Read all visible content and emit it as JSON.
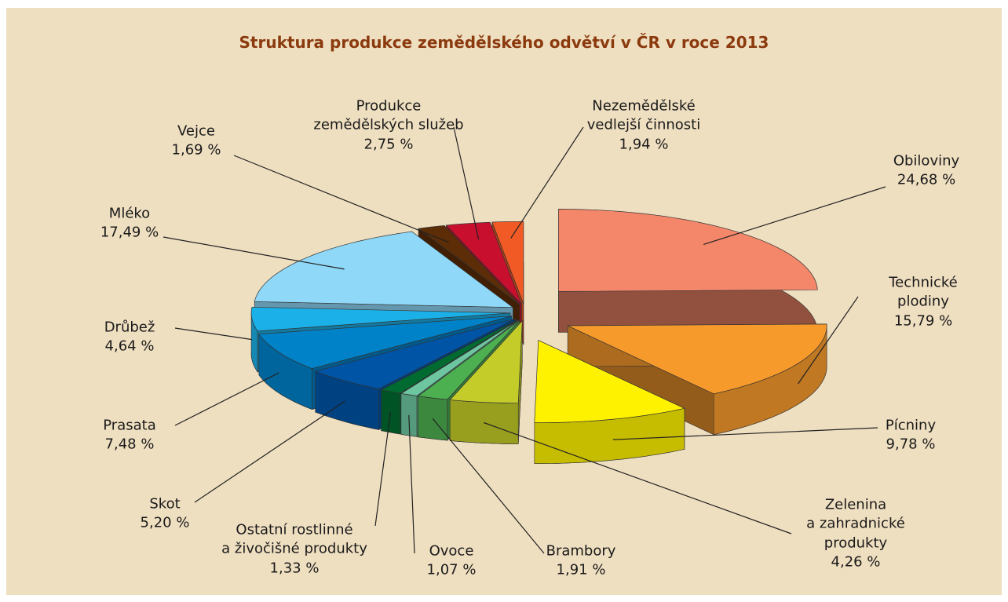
{
  "chart_data": {
    "type": "pie",
    "title": "Struktura produkce zemědělského odvětví v ČR v roce 2013",
    "categories": [
      "Obiloviny",
      "Technické plodiny",
      "Pícniny",
      "Zelenina\na zahradnické produkty",
      "Brambory",
      "Ovoce",
      "Ostatní rostlinné\na živočišné produkty",
      "Skot",
      "Prasata",
      "Drůbež",
      "Mléko",
      "Vejce",
      "Produkce\nzemědělských služeb",
      "Nezemědělské\nvedlejší činnosti"
    ],
    "values": [
      24.68,
      15.79,
      9.78,
      4.26,
      1.91,
      1.07,
      1.33,
      5.2,
      7.48,
      4.64,
      17.49,
      1.69,
      2.75,
      1.94
    ],
    "value_labels": [
      "24,68 %",
      "15,79 %",
      "9,78 %",
      "4,26 %",
      "1,91 %",
      "1,07 %",
      "1,33 %",
      "5,20 %",
      "7,48 %",
      "4,64 %",
      "17,49 %",
      "1,69 %",
      "2,75 %",
      "1,94 %"
    ],
    "colors": [
      "#f4876a",
      "#f79a2c",
      "#fff200",
      "#c4cc29",
      "#4caf50",
      "#6dc6a0",
      "#006b30",
      "#0054a6",
      "#0082c8",
      "#1cb0e8",
      "#8fd8f8",
      "#5c2d06",
      "#c8102e",
      "#f15a24"
    ]
  }
}
